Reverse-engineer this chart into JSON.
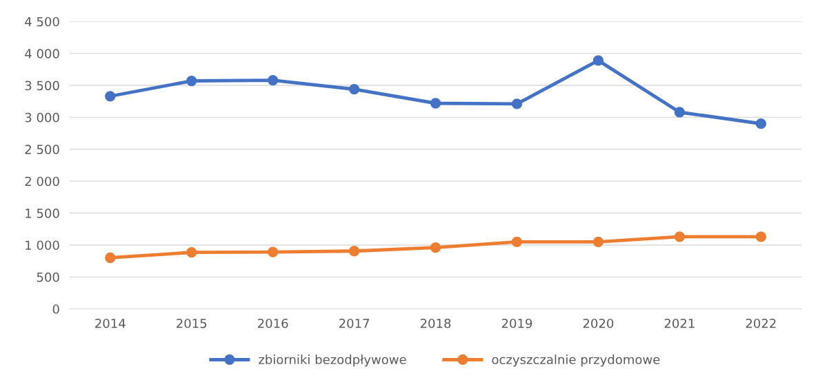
{
  "chart_data": {
    "type": "line",
    "categories": [
      "2014",
      "2015",
      "2016",
      "2017",
      "2018",
      "2019",
      "2020",
      "2021",
      "2022"
    ],
    "series": [
      {
        "name": "zbiorniki bezodpływowe",
        "color": "#4472c4",
        "values": [
          3330,
          3570,
          3580,
          3440,
          3220,
          3210,
          3890,
          3080,
          2900
        ]
      },
      {
        "name": "oczyszczalnie przydomowe",
        "color": "#ed7d31",
        "values": [
          800,
          885,
          890,
          905,
          960,
          1050,
          1050,
          1130,
          1130
        ]
      }
    ],
    "ylim": [
      0,
      4500
    ],
    "yticks": [
      0,
      500,
      {
        "value": 1000,
        "label": "1 000"
      },
      {
        "value": 1500,
        "label": "1 500"
      },
      {
        "value": 2000,
        "label": "2 000"
      },
      {
        "value": 2500,
        "label": "2 500"
      },
      {
        "value": 3000,
        "label": "3 000"
      },
      {
        "value": 3500,
        "label": "3 500"
      },
      {
        "value": 4000,
        "label": "4 000"
      },
      {
        "value": 4500,
        "label": "4 500"
      }
    ],
    "grid": "y",
    "legend": "bottom",
    "marker": "circle",
    "line_style": "solid"
  }
}
